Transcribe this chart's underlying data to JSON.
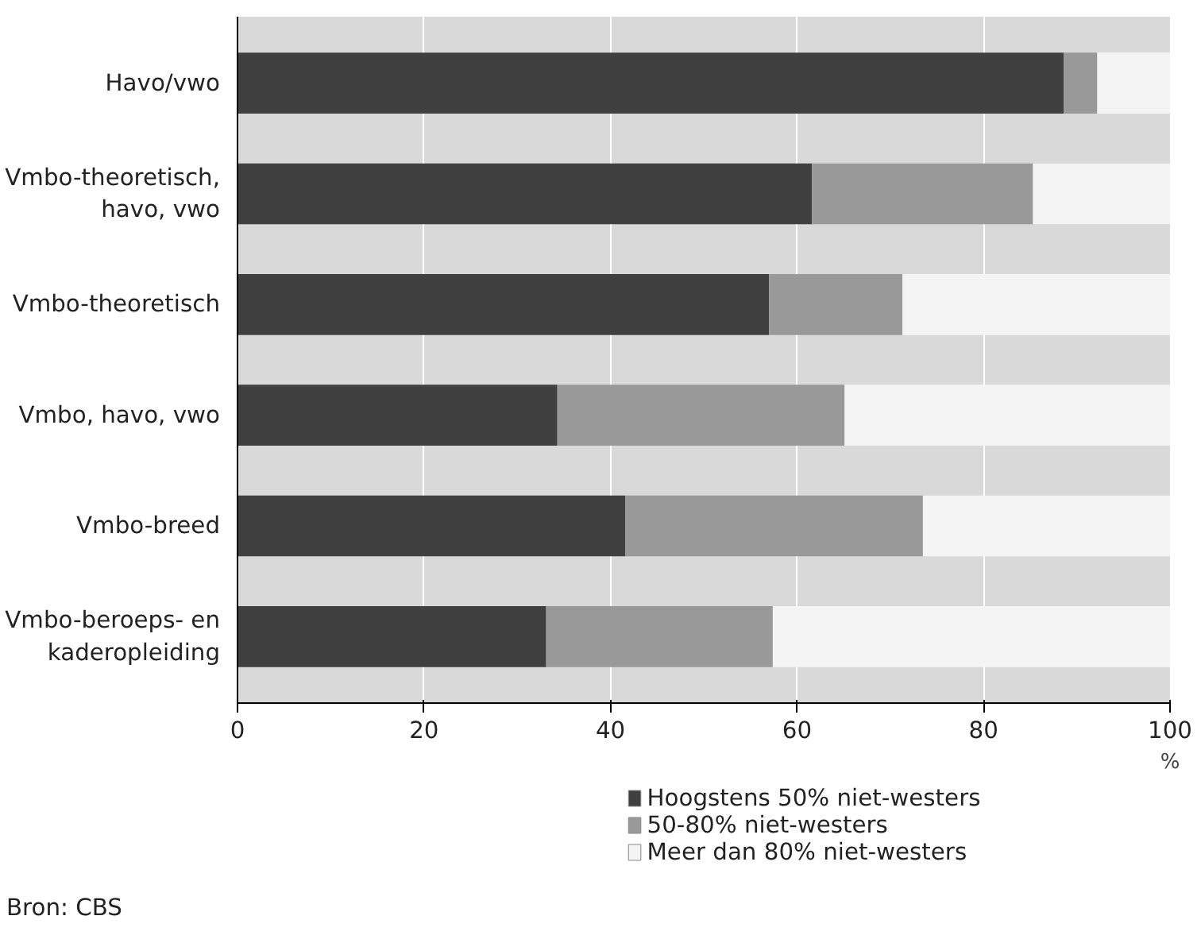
{
  "chart_data": {
    "type": "bar",
    "orientation": "horizontal",
    "stacked": true,
    "categories": [
      "Havo/vwo",
      "Vmbo-theoretisch,\nhavo, vwo",
      "Vmbo-theoretisch",
      "Vmbo, havo, vwo",
      "Vmbo-breed",
      "Vmbo-beroeps- en\nkaderopleiding"
    ],
    "series": [
      {
        "name": "Hoogstens 50% niet-westers",
        "color": "#404040",
        "values": [
          88.6,
          61.6,
          57.0,
          34.3,
          41.6,
          33.1
        ]
      },
      {
        "name": "50-80% niet-westers",
        "color": "#999999",
        "values": [
          3.6,
          23.7,
          14.3,
          30.8,
          31.9,
          24.3
        ]
      },
      {
        "name": "Meer dan 80% niet-westers",
        "color": "#f4f4f4",
        "values": [
          7.8,
          14.7,
          28.7,
          34.9,
          26.5,
          42.6
        ]
      }
    ],
    "xlim": [
      0,
      100
    ],
    "xticks": [
      0,
      20,
      40,
      60,
      80,
      100
    ],
    "xlabel": "%",
    "grid": "x",
    "legend": "bottom",
    "annotations": [
      "Bron: CBS"
    ]
  }
}
